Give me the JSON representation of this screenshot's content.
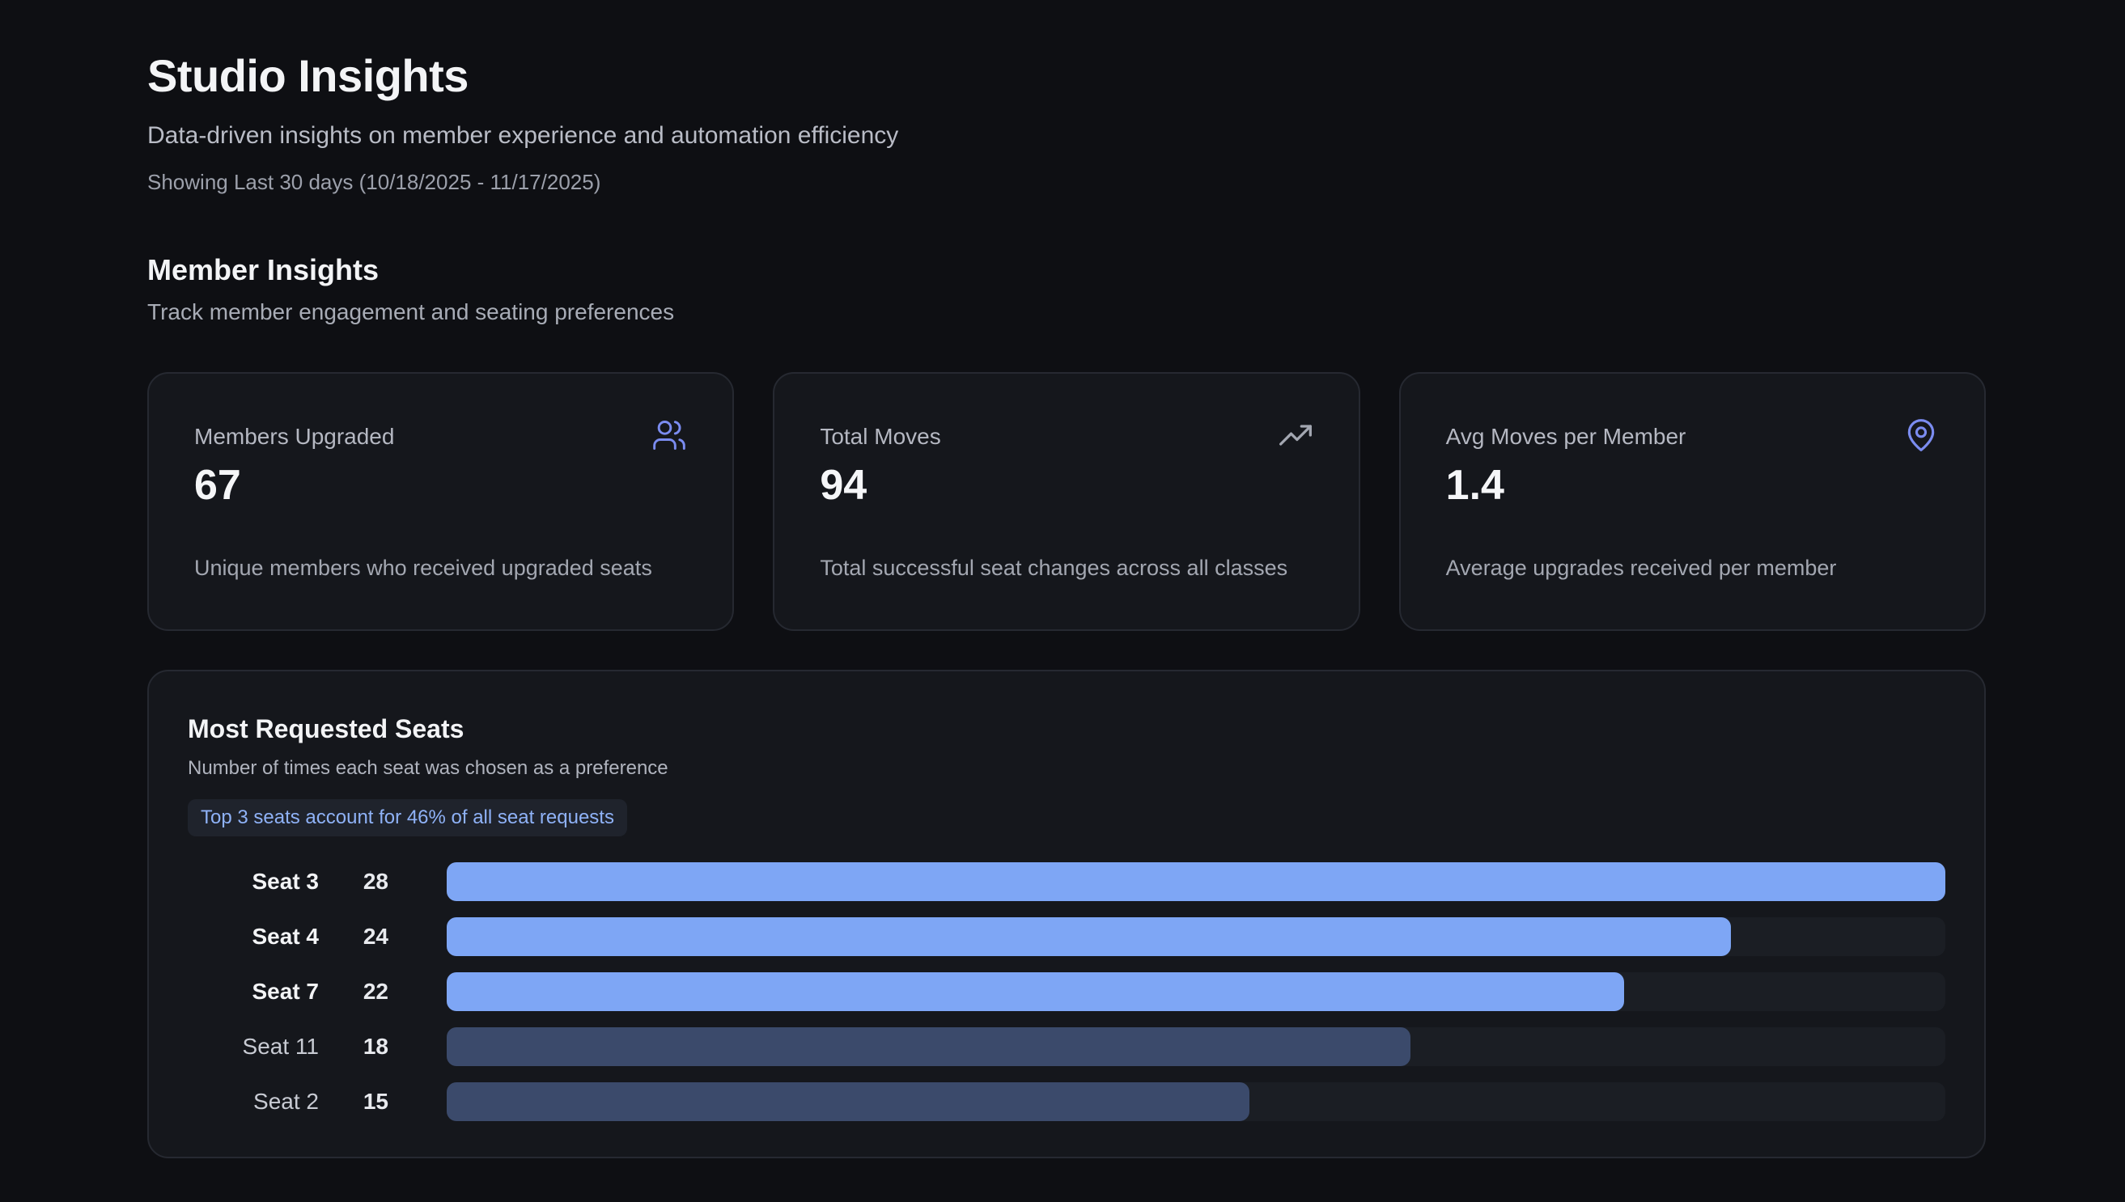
{
  "header": {
    "title": "Studio Insights",
    "subtitle": "Data-driven insights on member experience and automation efficiency",
    "date_range": "Showing Last 30 days (10/18/2025 - 11/17/2025)"
  },
  "section": {
    "title": "Member Insights",
    "description": "Track member engagement and seating preferences"
  },
  "cards": [
    {
      "label": "Members Upgraded",
      "value": "67",
      "description": "Unique members who received upgraded seats",
      "icon": "users-icon",
      "icon_color": "#7b8cf0"
    },
    {
      "label": "Total Moves",
      "value": "94",
      "description": "Total successful seat changes across all classes",
      "icon": "trending-up-icon",
      "icon_color": "#a3a7b1"
    },
    {
      "label": "Avg Moves per Member",
      "value": "1.4",
      "description": "Average upgrades received per member",
      "icon": "map-pin-icon",
      "icon_color": "#7b8cf0"
    }
  ],
  "chart": {
    "title": "Most Requested Seats",
    "subtitle": "Number of times each seat was chosen as a preference",
    "badge": "Top 3 seats account for 46% of all seat requests"
  },
  "chart_data": {
    "type": "bar",
    "orientation": "horizontal",
    "categories": [
      "Seat 3",
      "Seat 4",
      "Seat 7",
      "Seat 11",
      "Seat 2"
    ],
    "values": [
      28,
      24,
      22,
      18,
      15
    ],
    "highlight_top": 3,
    "colors": {
      "highlight": "#7ea6f5",
      "normal": "#3b4a6b",
      "track": "#1b1e24"
    },
    "xlim": [
      0,
      28
    ]
  }
}
